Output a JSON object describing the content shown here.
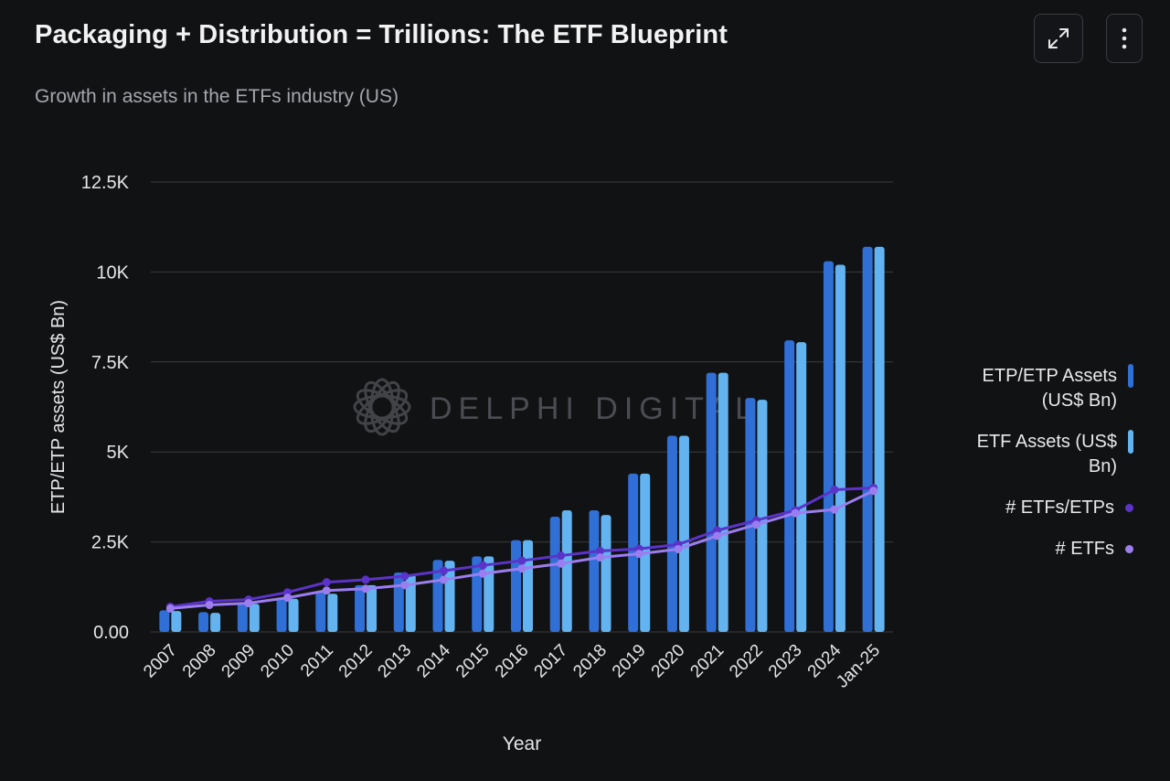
{
  "header": {
    "title": "Packaging + Distribution = Trillions: The ETF Blueprint",
    "subtitle": "Growth in assets in the ETFs industry (US)",
    "expand_icon": "expand-icon",
    "more_icon": "more-vertical-icon"
  },
  "watermark": {
    "text": "DELPHI DIGITAL"
  },
  "colors": {
    "background": "#111214",
    "etp_assets": "#2f6fd6",
    "etf_assets": "#62b3ef",
    "etfs_etps_line": "#5b33c9",
    "etfs_line": "#9c7df0",
    "grid": "#3a3c41",
    "axis_text": "#e6e6e8"
  },
  "chart_data": {
    "type": "bar",
    "title": "Growth in assets in the ETFs industry (US)",
    "xlabel": "Year",
    "ylabel": "ETP/ETP assets (US$ Bn)",
    "ylim": [
      0,
      12500
    ],
    "yticks": [
      0,
      2500,
      5000,
      7500,
      10000,
      12500
    ],
    "ytick_labels": [
      "0.00",
      "2.5K",
      "5K",
      "7.5K",
      "10K",
      "12.5K"
    ],
    "grid": true,
    "legend_position": "right",
    "categories": [
      "2007",
      "2008",
      "2009",
      "2010",
      "2011",
      "2012",
      "2013",
      "2014",
      "2015",
      "2016",
      "2017",
      "2018",
      "2019",
      "2020",
      "2021",
      "2022",
      "2023",
      "2024",
      "Jan-25"
    ],
    "series": [
      {
        "name": "ETP/ETP Assets (US$ Bn)",
        "kind": "bar",
        "values": [
          600,
          550,
          800,
          950,
          1100,
          1300,
          1650,
          2000,
          2100,
          2550,
          3200,
          3380,
          4400,
          5450,
          7200,
          6500,
          8100,
          10300,
          10700
        ]
      },
      {
        "name": "ETF Assets (US$ Bn)",
        "kind": "bar",
        "values": [
          580,
          530,
          780,
          920,
          1060,
          1300,
          1600,
          1980,
          2100,
          2550,
          3380,
          3250,
          4400,
          5450,
          7200,
          6450,
          8050,
          10200,
          10700
        ]
      },
      {
        "name": "# ETFs/ETPs",
        "kind": "line",
        "values": [
          700,
          850,
          900,
          1100,
          1380,
          1450,
          1550,
          1700,
          1850,
          1980,
          2120,
          2250,
          2310,
          2430,
          2820,
          3100,
          3380,
          3950,
          4000
        ]
      },
      {
        "name": "# ETFs",
        "kind": "line",
        "values": [
          650,
          750,
          800,
          950,
          1150,
          1200,
          1300,
          1450,
          1620,
          1760,
          1900,
          2070,
          2170,
          2300,
          2670,
          2980,
          3300,
          3400,
          3920
        ]
      }
    ]
  }
}
